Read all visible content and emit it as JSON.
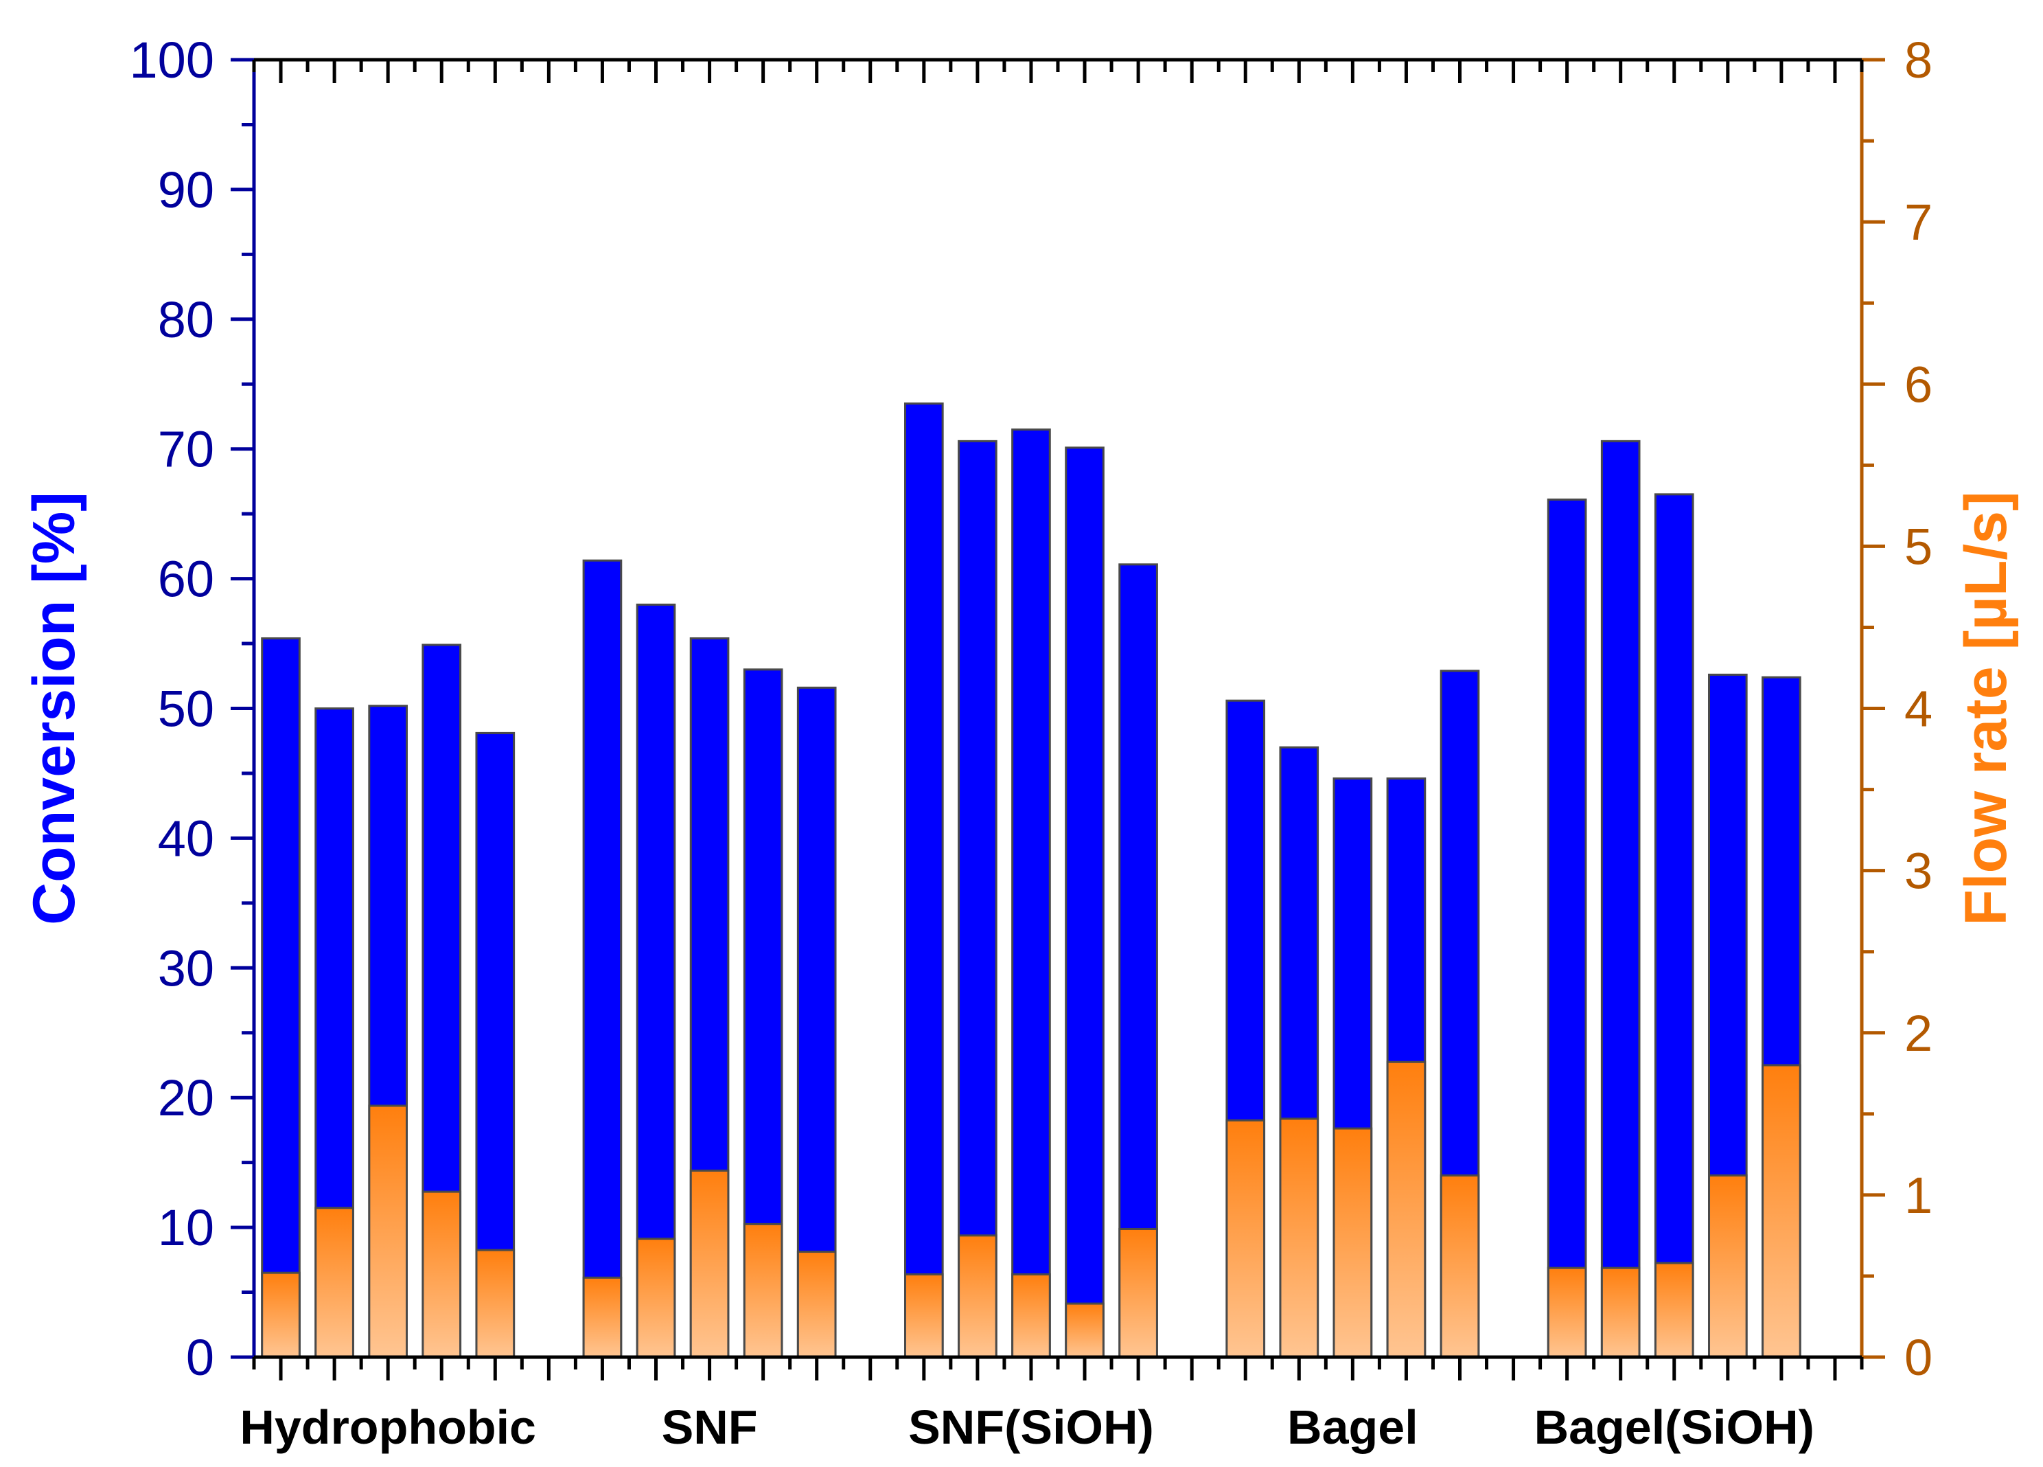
{
  "chart_data": {
    "type": "bar",
    "groups": [
      "Hydrophobic",
      "SNF",
      "SNF(SiOH)",
      "Bagel",
      "Bagel(SiOH)"
    ],
    "bars_per_group": 5,
    "series": [
      {
        "name": "Conversion",
        "axis": "left",
        "color": "#0000FF",
        "values": [
          [
            55.4,
            50.0,
            50.2,
            54.9,
            48.1
          ],
          [
            61.4,
            58.0,
            55.4,
            53.0,
            51.6
          ],
          [
            73.5,
            70.6,
            71.5,
            70.1,
            61.1
          ],
          [
            50.6,
            47.0,
            44.6,
            44.6,
            52.9
          ],
          [
            66.1,
            70.6,
            66.5,
            52.6,
            52.4
          ]
        ]
      },
      {
        "name": "Flow rate",
        "axis": "right",
        "color_top": "#FF7F0E",
        "color_bottom": "#FFC592",
        "values": [
          [
            0.52,
            0.92,
            1.55,
            1.02,
            0.66
          ],
          [
            0.49,
            0.73,
            1.15,
            0.82,
            0.65
          ],
          [
            0.51,
            0.75,
            0.51,
            0.33,
            0.79
          ],
          [
            1.46,
            1.47,
            1.41,
            1.82,
            1.12
          ],
          [
            0.55,
            0.55,
            0.58,
            1.12,
            1.8
          ]
        ]
      }
    ],
    "left_axis": {
      "label": "Conversion [%]",
      "color": "#00009C",
      "label_color": "#0000FF",
      "min": 0,
      "max": 100,
      "major_step": 10,
      "minor_step": 5,
      "ticks": [
        "0",
        "10",
        "20",
        "30",
        "40",
        "50",
        "60",
        "70",
        "80",
        "90",
        "100"
      ]
    },
    "right_axis": {
      "label": "Flow rate [µL/s]",
      "color": "#B35900",
      "label_color": "#FF7F0E",
      "min": 0,
      "max": 8,
      "major_step": 1,
      "minor_step": 0.5,
      "ticks": [
        "0",
        "1",
        "2",
        "3",
        "4",
        "5",
        "6",
        "7",
        "8"
      ]
    }
  }
}
